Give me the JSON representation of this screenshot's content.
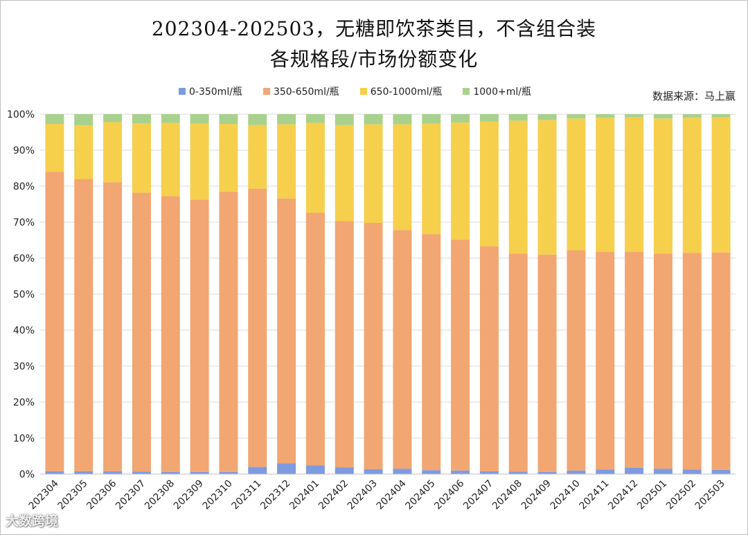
{
  "title_line1": "202304-202503，无糖即饮茶类目，不含组合装",
  "title_line2": "各规格段/市场份额变化",
  "source": "数据来源：马上赢",
  "watermark": "大数跨境",
  "colors": {
    "s0": "#7f9be0",
    "s1": "#f2a671",
    "s2": "#f6cf4c",
    "s3": "#a9d18e",
    "grid": "#d9d9d9"
  },
  "chart_data": {
    "type": "bar",
    "stacked": true,
    "percent": true,
    "title": "202304-202503，无糖即饮茶类目，不含组合装 各规格段/市场份额变化",
    "xlabel": "",
    "ylabel": "",
    "ylim": [
      0,
      100
    ],
    "yticks": [
      "0%",
      "10%",
      "20%",
      "30%",
      "40%",
      "50%",
      "60%",
      "70%",
      "80%",
      "90%",
      "100%"
    ],
    "grid": true,
    "legend_position": "top",
    "categories": [
      "202304",
      "202305",
      "202306",
      "202307",
      "202308",
      "202309",
      "202310",
      "202311",
      "202312",
      "202401",
      "202402",
      "202403",
      "202404",
      "202405",
      "202406",
      "202407",
      "202408",
      "202409",
      "202410",
      "202411",
      "202412",
      "202501",
      "202502",
      "202503"
    ],
    "series": [
      {
        "name": "0-350ml/瓶",
        "color_key": "s0",
        "values": [
          0.8,
          0.8,
          0.8,
          0.7,
          0.6,
          0.6,
          0.6,
          2.0,
          3.0,
          2.4,
          1.9,
          1.4,
          1.5,
          1.1,
          1.0,
          0.8,
          0.7,
          0.6,
          1.0,
          1.3,
          1.8,
          1.5,
          1.3,
          1.2
        ]
      },
      {
        "name": "350-650ml/瓶",
        "color_key": "s1",
        "values": [
          83.2,
          81.2,
          80.3,
          77.5,
          76.6,
          75.7,
          77.9,
          77.3,
          73.6,
          70.2,
          68.4,
          68.4,
          66.3,
          65.6,
          64.1,
          62.5,
          60.6,
          60.4,
          61.2,
          60.5,
          60.0,
          59.8,
          60.2,
          60.4
        ]
      },
      {
        "name": "650-1000ml/瓶",
        "color_key": "s2",
        "values": [
          13.3,
          14.9,
          16.7,
          19.3,
          20.4,
          21.1,
          18.8,
          17.7,
          20.6,
          25.0,
          26.7,
          27.4,
          29.4,
          30.7,
          32.6,
          34.6,
          36.9,
          37.4,
          36.6,
          37.2,
          37.3,
          37.5,
          37.5,
          37.5
        ]
      },
      {
        "name": "1000+ml/瓶",
        "color_key": "s3",
        "values": [
          2.7,
          3.1,
          2.2,
          2.5,
          2.4,
          2.6,
          2.7,
          3.0,
          2.8,
          2.4,
          3.0,
          2.8,
          2.8,
          2.6,
          2.3,
          2.1,
          1.8,
          1.6,
          1.2,
          1.0,
          0.9,
          1.2,
          1.0,
          0.9
        ]
      }
    ]
  }
}
